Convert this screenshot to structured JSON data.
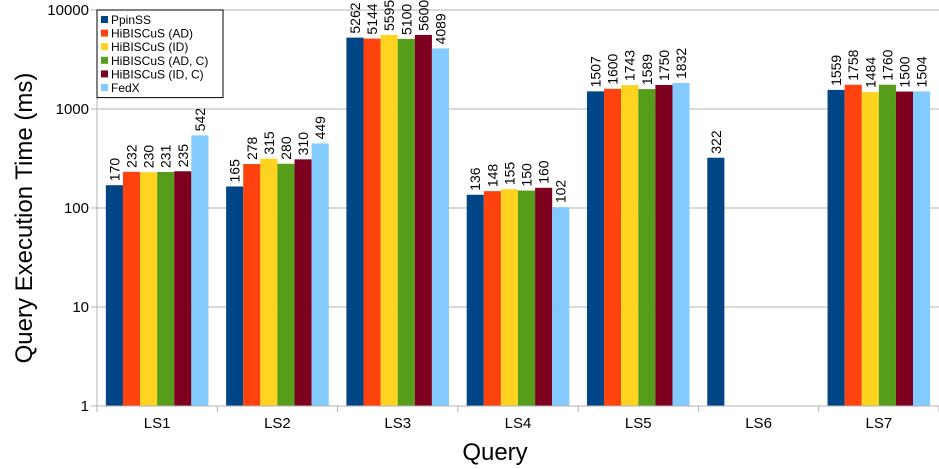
{
  "chart_data": {
    "type": "bar",
    "title": "",
    "xlabel": "Query",
    "ylabel": "Query Execution Time (ms)",
    "yscale": "log",
    "ylim": [
      1,
      10000
    ],
    "yticks": [
      1,
      10,
      100,
      1000,
      10000
    ],
    "ytick_labels": [
      "1",
      "10",
      "100",
      "1000",
      "10000"
    ],
    "grid": "horizontal",
    "legend_position": "top-left",
    "categories": [
      "LS1",
      "LS2",
      "LS3",
      "LS4",
      "LS5",
      "LS6",
      "LS7"
    ],
    "series": [
      {
        "name": "PpinSS",
        "color": "#004586",
        "values": [
          170,
          165,
          5262,
          136,
          1507,
          322,
          1559
        ]
      },
      {
        "name": "HiBISCuS (AD)",
        "color": "#ff420e",
        "values": [
          232,
          278,
          5144,
          148,
          1600,
          null,
          1758
        ]
      },
      {
        "name": "HiBISCuS (ID)",
        "color": "#ffd320",
        "values": [
          230,
          315,
          5595,
          155,
          1743,
          null,
          1484
        ]
      },
      {
        "name": "HiBISCuS (AD, C)",
        "color": "#579d1c",
        "values": [
          231,
          280,
          5100,
          150,
          1589,
          null,
          1760
        ]
      },
      {
        "name": "HiBISCuS (ID, C)",
        "color": "#7e0021",
        "values": [
          235,
          310,
          5600,
          160,
          1750,
          null,
          1500
        ]
      },
      {
        "name": "FedX",
        "color": "#83caff",
        "values": [
          542,
          449,
          4089,
          102,
          1832,
          null,
          1504
        ]
      }
    ]
  }
}
